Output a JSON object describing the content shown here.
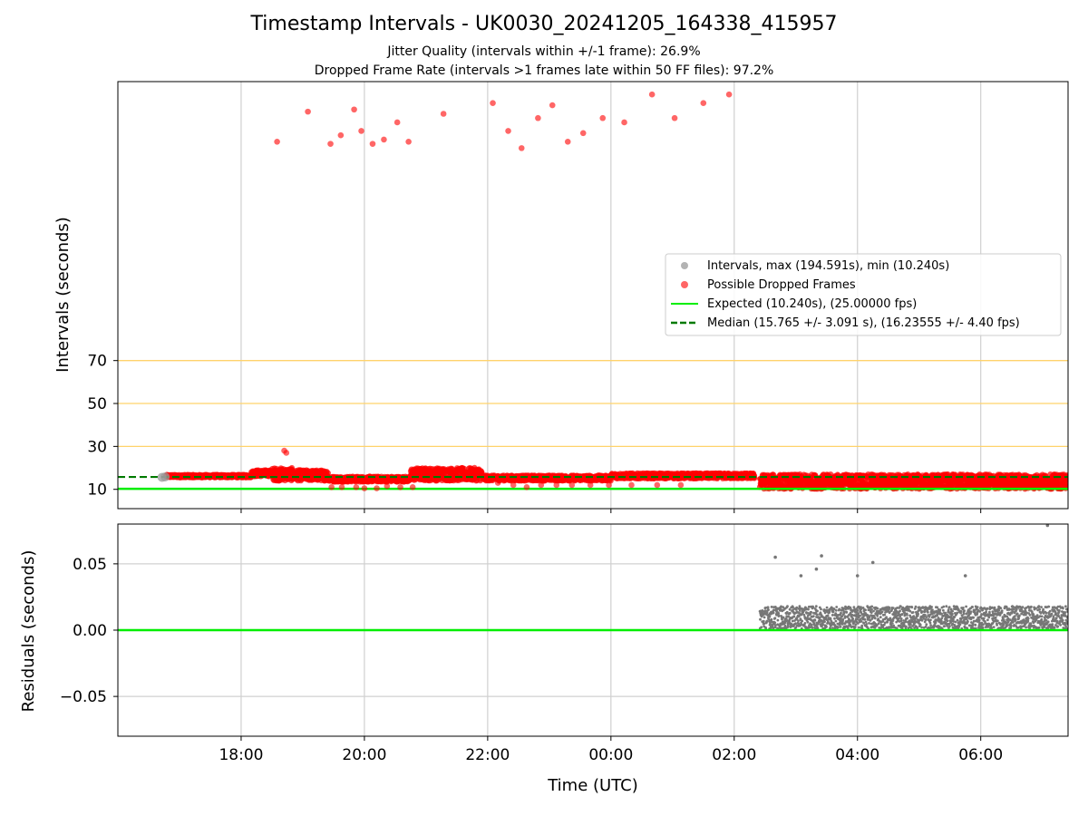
{
  "chart_data": [
    {
      "type": "scatter",
      "title": "Timestamp Intervals - UK0030_20241205_164338_415957",
      "subtitle_lines": [
        "Jitter Quality (intervals within +/-1 frame): 26.9%",
        "Dropped Frame Rate (intervals >1 frames late within 50 FF files): 97.2%"
      ],
      "xlabel": "",
      "ylabel": "Intervals (seconds)",
      "x_axis": "time (UTC), 2024-12-05 16:00 to 2024-12-06 07:30",
      "xlim": [
        "2024-12-05 16:00",
        "2024-12-06 07:25"
      ],
      "ylim": [
        1,
        200
      ],
      "yticks": [
        10,
        30,
        50,
        70
      ],
      "ytick_labels": [
        "10",
        "30",
        "50",
        "70"
      ],
      "grid": true,
      "reference_lines": [
        {
          "y": 30,
          "color": "#ffd36b",
          "style": "solid"
        },
        {
          "y": 50,
          "color": "#ffd36b",
          "style": "solid"
        },
        {
          "y": 70,
          "color": "#ffd36b",
          "style": "solid"
        }
      ],
      "legend_position": "center-right",
      "series": [
        {
          "name": "Intervals, max (194.591s), min (10.240s)",
          "kind": "scatter",
          "color": "#999999",
          "points": [
            [
              "2024-12-05 16:43",
              15.6
            ],
            [
              "2024-12-05 16:46",
              15.8
            ]
          ]
        },
        {
          "name": "Possible Dropped Frames",
          "kind": "scatter",
          "color": "#ff0000",
          "points": [
            [
              "2024-12-05 18:35",
              172
            ],
            [
              "2024-12-05 19:05",
              186
            ],
            [
              "2024-12-05 19:27",
              171
            ],
            [
              "2024-12-05 19:37",
              175
            ],
            [
              "2024-12-05 19:50",
              187
            ],
            [
              "2024-12-05 19:57",
              177
            ],
            [
              "2024-12-05 20:08",
              171
            ],
            [
              "2024-12-05 20:19",
              173
            ],
            [
              "2024-12-05 20:32",
              181
            ],
            [
              "2024-12-05 20:43",
              172
            ],
            [
              "2024-12-05 21:17",
              185
            ],
            [
              "2024-12-05 22:05",
              190
            ],
            [
              "2024-12-05 22:20",
              177
            ],
            [
              "2024-12-05 22:33",
              169
            ],
            [
              "2024-12-05 22:49",
              183
            ],
            [
              "2024-12-05 23:03",
              189
            ],
            [
              "2024-12-05 23:18",
              172
            ],
            [
              "2024-12-05 23:33",
              176
            ],
            [
              "2024-12-05 23:52",
              183
            ],
            [
              "2024-12-06 00:13",
              181
            ],
            [
              "2024-12-06 00:40",
              194
            ],
            [
              "2024-12-06 01:02",
              183
            ],
            [
              "2024-12-06 01:30",
              190
            ],
            [
              "2024-12-06 01:55",
              194
            ],
            [
              "2024-12-05 18:42",
              28
            ],
            [
              "2024-12-05 18:44",
              27
            ],
            [
              "2024-12-05 19:28",
              11
            ],
            [
              "2024-12-05 19:38",
              11
            ],
            [
              "2024-12-05 19:52",
              11
            ],
            [
              "2024-12-05 20:00",
              10.5
            ],
            [
              "2024-12-05 20:12",
              10.5
            ],
            [
              "2024-12-05 20:22",
              11.5
            ],
            [
              "2024-12-05 20:35",
              11
            ],
            [
              "2024-12-05 20:47",
              11
            ],
            [
              "2024-12-05 22:10",
              13
            ],
            [
              "2024-12-05 22:25",
              12
            ],
            [
              "2024-12-05 22:38",
              11
            ],
            [
              "2024-12-05 22:52",
              12
            ],
            [
              "2024-12-05 23:07",
              12
            ],
            [
              "2024-12-05 23:22",
              12
            ],
            [
              "2024-12-05 23:40",
              12
            ],
            [
              "2024-12-05 23:58",
              12
            ],
            [
              "2024-12-06 00:20",
              12
            ],
            [
              "2024-12-06 00:45",
              12
            ],
            [
              "2024-12-06 01:08",
              12
            ]
          ]
        },
        {
          "name": "Possible Dropped Frames",
          "kind": "dense-band",
          "color": "#ff0000",
          "segments": [
            {
              "x": [
                "2024-12-05 16:47",
                "2024-12-05 18:10"
              ],
              "y": [
                15.5,
                16.8
              ]
            },
            {
              "x": [
                "2024-12-05 18:10",
                "2024-12-05 18:30"
              ],
              "y": [
                16,
                19
              ]
            },
            {
              "x": [
                "2024-12-05 18:30",
                "2024-12-05 18:50"
              ],
              "y": [
                14,
                20
              ]
            },
            {
              "x": [
                "2024-12-05 18:50",
                "2024-12-05 19:25"
              ],
              "y": [
                14,
                19
              ]
            },
            {
              "x": [
                "2024-12-05 19:25",
                "2024-12-05 20:45"
              ],
              "y": [
                13.5,
                16
              ]
            },
            {
              "x": [
                "2024-12-05 20:45",
                "2024-12-05 21:55"
              ],
              "y": [
                14,
                20
              ]
            },
            {
              "x": [
                "2024-12-05 21:55",
                "2024-12-06 00:00"
              ],
              "y": [
                14,
                16.5
              ]
            },
            {
              "x": [
                "2024-12-06 00:00",
                "2024-12-06 02:20"
              ],
              "y": [
                15,
                17.5
              ]
            },
            {
              "x": [
                "2024-12-06 02:25",
                "2024-12-06 07:25"
              ],
              "y": [
                10.2,
                17
              ]
            }
          ]
        },
        {
          "name": "Expected (10.240s), (25.00000 fps)",
          "kind": "hline",
          "y": 10.24,
          "color": "#00ee00",
          "style": "solid"
        },
        {
          "name": "Median (15.765 +/- 3.091 s), (16.23555 +/- 4.40 fps)",
          "kind": "hline",
          "y": 15.765,
          "color": "#007a00",
          "style": "dashed"
        }
      ]
    },
    {
      "type": "scatter",
      "title": "",
      "xlabel": "Time (UTC)",
      "ylabel": "Residuals (seconds)",
      "xlim": [
        "2024-12-05 16:00",
        "2024-12-06 07:25"
      ],
      "ylim": [
        -0.08,
        0.08
      ],
      "yticks": [
        0.05,
        0.0,
        -0.05
      ],
      "ytick_labels": [
        "0.05",
        "0.00",
        "−0.05"
      ],
      "xticks": [
        "18:00",
        "20:00",
        "22:00",
        "00:00",
        "02:00",
        "04:00",
        "06:00"
      ],
      "grid": true,
      "series": [
        {
          "name": "",
          "kind": "hline",
          "y": 0.0,
          "color": "#00ee00"
        },
        {
          "name": "",
          "kind": "scatter",
          "color": "#777777",
          "points": [
            [
              "2024-12-06 02:40",
              0.055
            ],
            [
              "2024-12-06 03:05",
              0.041
            ],
            [
              "2024-12-06 03:20",
              0.046
            ],
            [
              "2024-12-06 03:25",
              0.056
            ],
            [
              "2024-12-06 04:00",
              0.041
            ],
            [
              "2024-12-06 04:15",
              0.051
            ],
            [
              "2024-12-06 05:45",
              0.041
            ],
            [
              "2024-12-06 07:05",
              0.079
            ]
          ]
        },
        {
          "name": "",
          "kind": "dense-band",
          "color": "#777777",
          "segments": [
            {
              "x": [
                "2024-12-06 02:25",
                "2024-12-06 07:25"
              ],
              "y": [
                0.001,
                0.018
              ]
            }
          ]
        }
      ]
    }
  ]
}
